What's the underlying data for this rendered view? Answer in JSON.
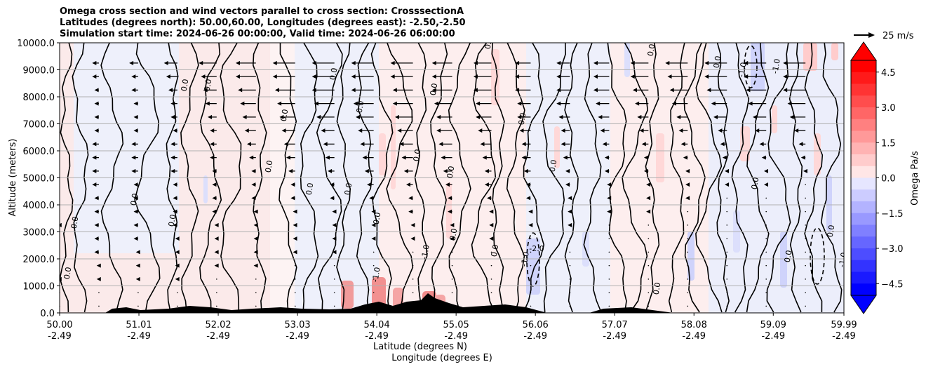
{
  "chart_data": {
    "type": "heatmap",
    "title_lines": [
      "Omega cross section and wind vectors parallel to cross section: CrosssectionA",
      "Latitudes (degrees north): 50.00,60.00, Longitudes (degrees east): -2.50,-2.50",
      "Simulation start time: 2024-06-26 00:00:00, Valid time: 2024-06-26 06:00:00"
    ],
    "ylabel": "Altitude (meters)",
    "xlabel_line1": "Latitude (degrees N)",
    "xlabel_line2": "Longitude (degrees E)",
    "ylim": [
      0,
      10000
    ],
    "xlim": [
      50.0,
      59.99
    ],
    "yticks": [
      "0.0",
      "1000.0",
      "2000.0",
      "3000.0",
      "4000.0",
      "5000.0",
      "6000.0",
      "7000.0",
      "8000.0",
      "9000.0",
      "10000.0"
    ],
    "ytick_values": [
      0,
      1000,
      2000,
      3000,
      4000,
      5000,
      6000,
      7000,
      8000,
      9000,
      10000
    ],
    "xticks_lat": [
      "50.00",
      "51.01",
      "52.02",
      "53.03",
      "54.04",
      "55.05",
      "56.06",
      "57.07",
      "58.08",
      "59.09",
      "59.99"
    ],
    "xticks_lon": [
      "-2.49",
      "-2.49",
      "-2.49",
      "-2.49",
      "-2.49",
      "-2.49",
      "-2.49",
      "-2.49",
      "-2.49",
      "-2.49",
      "-2.49"
    ],
    "xtick_values": [
      50.0,
      51.01,
      52.02,
      53.03,
      54.04,
      55.05,
      56.06,
      57.07,
      58.08,
      59.09,
      59.99
    ],
    "grid": "horizontal",
    "colorbar": {
      "label": "Omega Pa/s",
      "ticks": [
        "4.5",
        "3.0",
        "1.5",
        "0.0",
        "−1.5",
        "−3.0",
        "−4.5"
      ],
      "tick_values": [
        4.5,
        3.0,
        1.5,
        0.0,
        -1.5,
        -3.0,
        -4.5
      ],
      "range": [
        -5.0,
        5.0
      ],
      "colormap": "bwr",
      "extend": "both"
    },
    "quiver_key": "25 m/s",
    "contour_labels": [
      "0.0",
      "-1.0",
      "-2.0"
    ],
    "vector_columns": [
      {
        "lat": 50.0,
        "u": [
          0,
          0,
          -1,
          -2,
          -2,
          -2,
          -1,
          -2,
          -2,
          -3,
          -3,
          -3,
          -3,
          -3,
          -2,
          -2,
          -2,
          -2,
          -3
        ]
      },
      {
        "lat": 50.5,
        "u": [
          0,
          0,
          -1,
          -1,
          -2,
          -2,
          -2,
          -2,
          -2,
          -3,
          -3,
          -3,
          -3,
          -2,
          -2,
          -2,
          -2,
          -3,
          -3
        ]
      },
      {
        "lat": 51.0,
        "u": [
          0,
          0,
          -1,
          -1,
          -1,
          -2,
          -2,
          -2,
          -2,
          -2,
          -3,
          -3,
          -3,
          -2,
          -2,
          -2,
          -3,
          -3,
          -4
        ]
      },
      {
        "lat": 51.5,
        "u": [
          0,
          0,
          -1,
          -1,
          -1,
          -1,
          -2,
          -2,
          -2,
          -2,
          -3,
          -3,
          -3,
          -2,
          -3,
          -3,
          -4,
          -5,
          -6
        ]
      },
      {
        "lat": 52.0,
        "u": [
          0,
          0,
          0,
          -1,
          -1,
          -1,
          -1,
          -2,
          -2,
          -2,
          -2,
          -3,
          -3,
          -3,
          -4,
          -5,
          -6,
          -7,
          -8
        ]
      },
      {
        "lat": 52.5,
        "u": [
          0,
          0,
          0,
          -1,
          -1,
          -1,
          -1,
          -1,
          -2,
          -2,
          -2,
          -3,
          -4,
          -5,
          -6,
          -7,
          -8,
          -9,
          -9
        ]
      },
      {
        "lat": 53.0,
        "u": [
          0,
          0,
          0,
          0,
          -1,
          -1,
          -1,
          -1,
          -2,
          -2,
          -3,
          -4,
          -5,
          -6,
          -7,
          -8,
          -9,
          -10,
          -10
        ]
      },
      {
        "lat": 53.5,
        "u": [
          0,
          0,
          0,
          0,
          -1,
          -1,
          -1,
          -1,
          -2,
          -2,
          -3,
          -4,
          -5,
          -6,
          -8,
          -9,
          -10,
          -10,
          -10
        ]
      },
      {
        "lat": 54.0,
        "u": [
          0,
          0,
          0,
          0,
          0,
          -1,
          -1,
          -1,
          -2,
          -3,
          -4,
          -5,
          -6,
          -7,
          -8,
          -9,
          -10,
          -10,
          -10
        ]
      },
      {
        "lat": 54.5,
        "u": [
          0,
          0,
          0,
          0,
          0,
          -1,
          -1,
          -2,
          -2,
          -3,
          -4,
          -5,
          -6,
          -7,
          -8,
          -9,
          -9,
          -10,
          -10
        ]
      },
      {
        "lat": 55.0,
        "u": [
          0,
          0,
          0,
          0,
          0,
          -1,
          -1,
          -2,
          -2,
          -3,
          -4,
          -5,
          -6,
          -7,
          -7,
          -8,
          -9,
          -9,
          -9
        ]
      },
      {
        "lat": 55.5,
        "u": [
          0,
          0,
          0,
          0,
          0,
          -1,
          -1,
          -1,
          -2,
          -3,
          -3,
          -4,
          -5,
          -6,
          -7,
          -7,
          -8,
          -8,
          -8
        ]
      },
      {
        "lat": 56.0,
        "u": [
          0,
          0,
          0,
          0,
          0,
          0,
          -1,
          -1,
          -2,
          -2,
          -3,
          -4,
          -4,
          -5,
          -6,
          -6,
          -7,
          -7,
          -7
        ]
      },
      {
        "lat": 56.5,
        "u": [
          0,
          0,
          0,
          0,
          0,
          0,
          -1,
          -1,
          -1,
          -2,
          -2,
          -3,
          -4,
          -4,
          -5,
          -6,
          -6,
          -6,
          -6
        ]
      },
      {
        "lat": 57.0,
        "u": [
          0,
          0,
          0,
          0,
          0,
          0,
          0,
          -1,
          -1,
          -1,
          -2,
          -2,
          -3,
          -4,
          -5,
          -6,
          -7,
          -7,
          -7
        ]
      },
      {
        "lat": 57.5,
        "u": [
          0,
          0,
          0,
          0,
          0,
          0,
          0,
          -1,
          -1,
          -1,
          -2,
          -2,
          -3,
          -4,
          -5,
          -6,
          -7,
          -8,
          -8
        ]
      },
      {
        "lat": 58.0,
        "u": [
          0,
          0,
          0,
          0,
          0,
          0,
          0,
          0,
          -1,
          -1,
          -1,
          -2,
          -3,
          -4,
          -5,
          -7,
          -8,
          -9,
          -10
        ]
      },
      {
        "lat": 58.5,
        "u": [
          0,
          0,
          0,
          0,
          0,
          0,
          0,
          0,
          0,
          -1,
          -1,
          -2,
          -3,
          -4,
          -6,
          -7,
          -9,
          -10,
          -10
        ]
      },
      {
        "lat": 59.0,
        "u": [
          0,
          0,
          0,
          0,
          0,
          0,
          0,
          0,
          0,
          -1,
          -1,
          -2,
          -3,
          -5,
          -6,
          -8,
          -9,
          -10,
          -10
        ]
      },
      {
        "lat": 59.5,
        "u": [
          0,
          0,
          0,
          0,
          0,
          0,
          0,
          0,
          0,
          0,
          -1,
          -2,
          -3,
          -5,
          -7,
          -8,
          -10,
          -10,
          -10
        ]
      }
    ],
    "vector_levels": [
      0,
      500,
      1000,
      1500,
      2000,
      2500,
      3000,
      3500,
      4000,
      4500,
      5000,
      5500,
      6000,
      6500,
      7000,
      7500,
      8000,
      8500,
      9000
    ]
  }
}
